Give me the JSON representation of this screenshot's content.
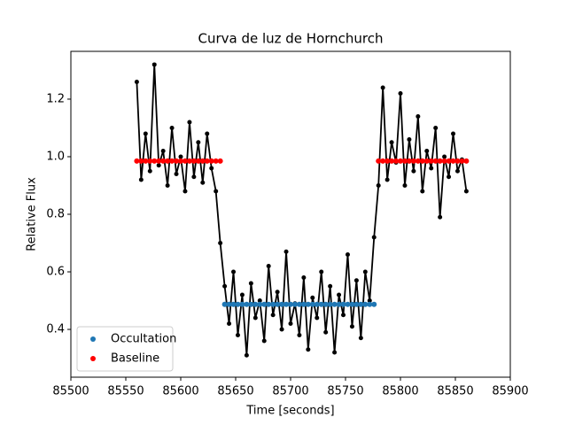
{
  "chart_data": {
    "type": "line",
    "title": "Curva de luz de Hornchurch",
    "x_label": "Time [seconds]",
    "y_label": "Relative Flux",
    "x": [
      85560,
      85564,
      85568,
      85572,
      85576,
      85580,
      85584,
      85588,
      85592,
      85596,
      85600,
      85604,
      85608,
      85612,
      85616,
      85620,
      85624,
      85628,
      85632,
      85636,
      85640,
      85644,
      85648,
      85652,
      85656,
      85660,
      85664,
      85668,
      85672,
      85676,
      85680,
      85684,
      85688,
      85692,
      85696,
      85700,
      85704,
      85708,
      85712,
      85716,
      85720,
      85724,
      85728,
      85732,
      85736,
      85740,
      85744,
      85748,
      85752,
      85756,
      85760,
      85764,
      85768,
      85772,
      85776,
      85780,
      85784,
      85788,
      85792,
      85796,
      85800,
      85804,
      85808,
      85812,
      85816,
      85820,
      85824,
      85828,
      85832,
      85836,
      85840,
      85844,
      85848,
      85852,
      85856,
      85860
    ],
    "series": [
      {
        "color": "#000000",
        "line": true,
        "values": [
          1.26,
          0.92,
          1.08,
          0.95,
          1.32,
          0.97,
          1.02,
          0.9,
          1.1,
          0.94,
          1.0,
          0.88,
          1.12,
          0.93,
          1.05,
          0.91,
          1.08,
          0.96,
          0.88,
          0.7,
          0.55,
          0.42,
          0.6,
          0.38,
          0.52,
          0.31,
          0.56,
          0.44,
          0.5,
          0.36,
          0.62,
          0.45,
          0.53,
          0.4,
          0.67,
          0.42,
          0.49,
          0.38,
          0.58,
          0.33,
          0.51,
          0.44,
          0.6,
          0.39,
          0.55,
          0.32,
          0.52,
          0.45,
          0.66,
          0.41,
          0.57,
          0.37,
          0.6,
          0.5,
          0.72,
          0.9,
          1.24,
          0.92,
          1.05,
          0.98,
          1.22,
          0.9,
          1.06,
          0.95,
          1.14,
          0.88,
          1.02,
          0.96,
          1.1,
          0.79,
          1.0,
          0.93,
          1.08,
          0.95,
          0.99,
          0.88
        ]
      },
      {
        "name": "Occultation",
        "color": "#1f77b4",
        "line": false,
        "values": [
          null,
          null,
          null,
          null,
          null,
          null,
          null,
          null,
          null,
          null,
          null,
          null,
          null,
          null,
          null,
          null,
          null,
          null,
          null,
          null,
          0.487,
          0.487,
          0.487,
          0.487,
          0.487,
          0.487,
          0.487,
          0.487,
          0.487,
          0.487,
          0.487,
          0.487,
          0.487,
          0.487,
          0.487,
          0.487,
          0.487,
          0.487,
          0.487,
          0.487,
          0.487,
          0.487,
          0.487,
          0.487,
          0.487,
          0.487,
          0.487,
          0.487,
          0.487,
          0.487,
          0.487,
          0.487,
          0.487,
          0.487,
          0.487,
          null,
          null,
          null,
          null,
          null,
          null,
          null,
          null,
          null,
          null,
          null,
          null,
          null,
          null,
          null,
          null,
          null,
          null,
          null,
          null,
          null
        ]
      },
      {
        "name": "Baseline",
        "color": "#ff0000",
        "line": false,
        "values": [
          0.985,
          0.985,
          0.985,
          0.985,
          0.985,
          0.985,
          0.985,
          0.985,
          0.985,
          0.985,
          0.985,
          0.985,
          0.985,
          0.985,
          0.985,
          0.985,
          0.985,
          0.985,
          0.985,
          0.985,
          null,
          null,
          null,
          null,
          null,
          null,
          null,
          null,
          null,
          null,
          null,
          null,
          null,
          null,
          null,
          null,
          null,
          null,
          null,
          null,
          null,
          null,
          null,
          null,
          null,
          null,
          null,
          null,
          null,
          null,
          null,
          null,
          null,
          null,
          null,
          0.985,
          0.985,
          0.985,
          0.985,
          0.985,
          0.985,
          0.985,
          0.985,
          0.985,
          0.985,
          0.985,
          0.985,
          0.985,
          0.985,
          0.985,
          0.985,
          0.985,
          0.985,
          0.985,
          0.985,
          0.985
        ]
      }
    ],
    "xlim": [
      85500,
      85900
    ],
    "xticks": [
      85500,
      85550,
      85600,
      85650,
      85700,
      85750,
      85800,
      85850,
      85900
    ],
    "ylim": [
      0.234,
      1.366
    ],
    "yticks": [
      0.4,
      0.6,
      0.8,
      {
        "value": 1.0,
        "label": "1.0"
      },
      1.2
    ],
    "legend": "lower left"
  }
}
